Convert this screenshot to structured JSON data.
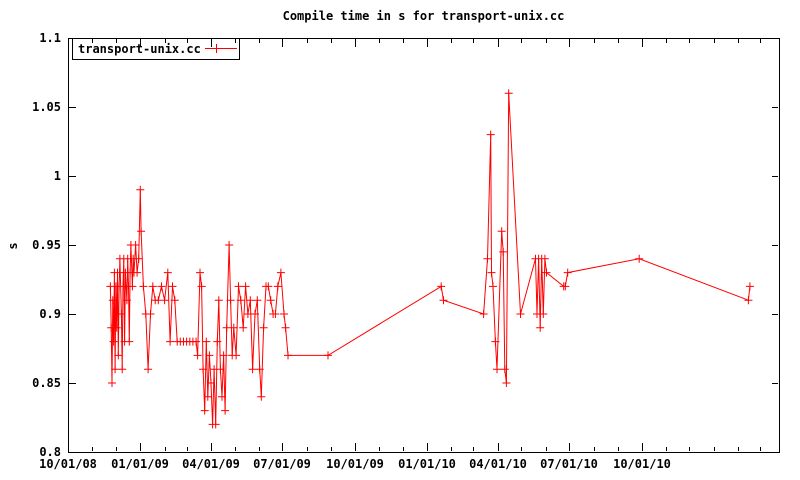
{
  "colors": {
    "series": "#ff0000",
    "axis": "#000000",
    "background": "#ffffff"
  },
  "chart_data": {
    "type": "line",
    "title": "Compile time in s for transport-unix.cc",
    "ylabel": "s",
    "grid": false,
    "legend": {
      "position": "top-left",
      "boxed": true,
      "label": "transport-unix.cc",
      "marker": "plus"
    },
    "y_axis": {
      "min": 0.8,
      "max": 1.1,
      "ticks": [
        {
          "v": 0.8,
          "label": "0.8"
        },
        {
          "v": 0.85,
          "label": "0.85"
        },
        {
          "v": 0.9,
          "label": "0.9"
        },
        {
          "v": 0.95,
          "label": "0.95"
        },
        {
          "v": 1.0,
          "label": "1"
        },
        {
          "v": 1.05,
          "label": "1.05"
        },
        {
          "v": 1.1,
          "label": "1.1"
        }
      ]
    },
    "x_axis": {
      "start": "2008-10-01",
      "end": "2011-03-25",
      "minor_tick_interval": "1 month",
      "major_ticks": [
        {
          "date": "2008-10-01",
          "label": "10/01/08"
        },
        {
          "date": "2009-01-01",
          "label": "01/01/09"
        },
        {
          "date": "2009-04-01",
          "label": "04/01/09"
        },
        {
          "date": "2009-07-01",
          "label": "07/01/09"
        },
        {
          "date": "2009-10-01",
          "label": "10/01/09"
        },
        {
          "date": "2010-01-01",
          "label": "01/01/10"
        },
        {
          "date": "2010-04-01",
          "label": "04/01/10"
        },
        {
          "date": "2010-07-01",
          "label": "07/01/10"
        },
        {
          "date": "2010-10-01",
          "label": "10/01/10"
        }
      ]
    },
    "series": [
      {
        "name": "transport-unix.cc",
        "color": "#ff0000",
        "marker": "plus",
        "points": [
          [
            "2008-11-24",
            0.92
          ],
          [
            "2008-11-25",
            0.89
          ],
          [
            "2008-11-26",
            0.85
          ],
          [
            "2008-11-27",
            0.91
          ],
          [
            "2008-11-28",
            0.88
          ],
          [
            "2008-11-29",
            0.93
          ],
          [
            "2008-11-30",
            0.86
          ],
          [
            "2008-12-01",
            0.92
          ],
          [
            "2008-12-02",
            0.89
          ],
          [
            "2008-12-03",
            0.93
          ],
          [
            "2008-12-04",
            0.87
          ],
          [
            "2008-12-05",
            0.92
          ],
          [
            "2008-12-06",
            0.94
          ],
          [
            "2008-12-08",
            0.9
          ],
          [
            "2008-12-09",
            0.86
          ],
          [
            "2008-12-10",
            0.92
          ],
          [
            "2008-12-11",
            0.94
          ],
          [
            "2008-12-12",
            0.88
          ],
          [
            "2008-12-13",
            0.93
          ],
          [
            "2008-12-15",
            0.91
          ],
          [
            "2008-12-16",
            0.94
          ],
          [
            "2008-12-17",
            0.92
          ],
          [
            "2008-12-18",
            0.88
          ],
          [
            "2008-12-19",
            0.93
          ],
          [
            "2008-12-20",
            0.95
          ],
          [
            "2008-12-22",
            0.92
          ],
          [
            "2008-12-23",
            0.94
          ],
          [
            "2008-12-24",
            0.93
          ],
          [
            "2008-12-26",
            0.95
          ],
          [
            "2008-12-28",
            0.93
          ],
          [
            "2008-12-30",
            0.94
          ],
          [
            "2009-01-01",
            0.99
          ],
          [
            "2009-01-02",
            0.96
          ],
          [
            "2009-01-05",
            0.92
          ],
          [
            "2009-01-08",
            0.9
          ],
          [
            "2009-01-11",
            0.86
          ],
          [
            "2009-01-14",
            0.9
          ],
          [
            "2009-01-17",
            0.92
          ],
          [
            "2009-01-20",
            0.91
          ],
          [
            "2009-01-24",
            0.91
          ],
          [
            "2009-01-28",
            0.92
          ],
          [
            "2009-02-01",
            0.91
          ],
          [
            "2009-02-05",
            0.93
          ],
          [
            "2009-02-08",
            0.88
          ],
          [
            "2009-02-11",
            0.92
          ],
          [
            "2009-02-14",
            0.91
          ],
          [
            "2009-02-17",
            0.88
          ],
          [
            "2009-02-21",
            0.88
          ],
          [
            "2009-02-25",
            0.88
          ],
          [
            "2009-03-01",
            0.88
          ],
          [
            "2009-03-05",
            0.88
          ],
          [
            "2009-03-09",
            0.88
          ],
          [
            "2009-03-13",
            0.88
          ],
          [
            "2009-03-15",
            0.87
          ],
          [
            "2009-03-18",
            0.93
          ],
          [
            "2009-03-20",
            0.92
          ],
          [
            "2009-03-22",
            0.86
          ],
          [
            "2009-03-24",
            0.83
          ],
          [
            "2009-03-26",
            0.88
          ],
          [
            "2009-03-28",
            0.84
          ],
          [
            "2009-03-30",
            0.87
          ],
          [
            "2009-04-01",
            0.85
          ],
          [
            "2009-04-03",
            0.82
          ],
          [
            "2009-04-05",
            0.86
          ],
          [
            "2009-04-07",
            0.82
          ],
          [
            "2009-04-09",
            0.88
          ],
          [
            "2009-04-11",
            0.91
          ],
          [
            "2009-04-13",
            0.86
          ],
          [
            "2009-04-15",
            0.84
          ],
          [
            "2009-04-17",
            0.87
          ],
          [
            "2009-04-19",
            0.83
          ],
          [
            "2009-04-21",
            0.89
          ],
          [
            "2009-04-24",
            0.95
          ],
          [
            "2009-04-26",
            0.91
          ],
          [
            "2009-04-28",
            0.87
          ],
          [
            "2009-04-30",
            0.89
          ],
          [
            "2009-05-03",
            0.87
          ],
          [
            "2009-05-06",
            0.92
          ],
          [
            "2009-05-09",
            0.91
          ],
          [
            "2009-05-12",
            0.89
          ],
          [
            "2009-05-15",
            0.92
          ],
          [
            "2009-05-18",
            0.9
          ],
          [
            "2009-05-21",
            0.91
          ],
          [
            "2009-05-24",
            0.86
          ],
          [
            "2009-05-27",
            0.9
          ],
          [
            "2009-05-30",
            0.91
          ],
          [
            "2009-06-02",
            0.86
          ],
          [
            "2009-06-04",
            0.84
          ],
          [
            "2009-06-07",
            0.89
          ],
          [
            "2009-06-10",
            0.92
          ],
          [
            "2009-06-13",
            0.92
          ],
          [
            "2009-06-16",
            0.91
          ],
          [
            "2009-06-19",
            0.9
          ],
          [
            "2009-06-22",
            0.9
          ],
          [
            "2009-06-25",
            0.92
          ],
          [
            "2009-06-29",
            0.93
          ],
          [
            "2009-07-03",
            0.9
          ],
          [
            "2009-07-05",
            0.89
          ],
          [
            "2009-07-08",
            0.87
          ],
          [
            "2009-08-28",
            0.87
          ],
          [
            "2010-01-19",
            0.92
          ],
          [
            "2010-01-22",
            0.91
          ],
          [
            "2010-03-14",
            0.9
          ],
          [
            "2010-03-19",
            0.94
          ],
          [
            "2010-03-23",
            1.03
          ],
          [
            "2010-03-24",
            0.93
          ],
          [
            "2010-03-26",
            0.92
          ],
          [
            "2010-03-29",
            0.88
          ],
          [
            "2010-03-31",
            0.86
          ],
          [
            "2010-04-06",
            0.96
          ],
          [
            "2010-04-08",
            0.945
          ],
          [
            "2010-04-10",
            0.86
          ],
          [
            "2010-04-12",
            0.85
          ],
          [
            "2010-04-15",
            1.06
          ],
          [
            "2010-04-30",
            0.9
          ],
          [
            "2010-05-19",
            0.94
          ],
          [
            "2010-05-21",
            0.9
          ],
          [
            "2010-05-23",
            0.94
          ],
          [
            "2010-05-25",
            0.89
          ],
          [
            "2010-05-27",
            0.94
          ],
          [
            "2010-05-29",
            0.9
          ],
          [
            "2010-05-31",
            0.94
          ],
          [
            "2010-06-02",
            0.93
          ],
          [
            "2010-06-24",
            0.92
          ],
          [
            "2010-06-26",
            0.92
          ],
          [
            "2010-06-29",
            0.93
          ],
          [
            "2010-09-28",
            0.94
          ],
          [
            "2011-02-14",
            0.91
          ],
          [
            "2011-02-16",
            0.92
          ]
        ]
      }
    ]
  }
}
